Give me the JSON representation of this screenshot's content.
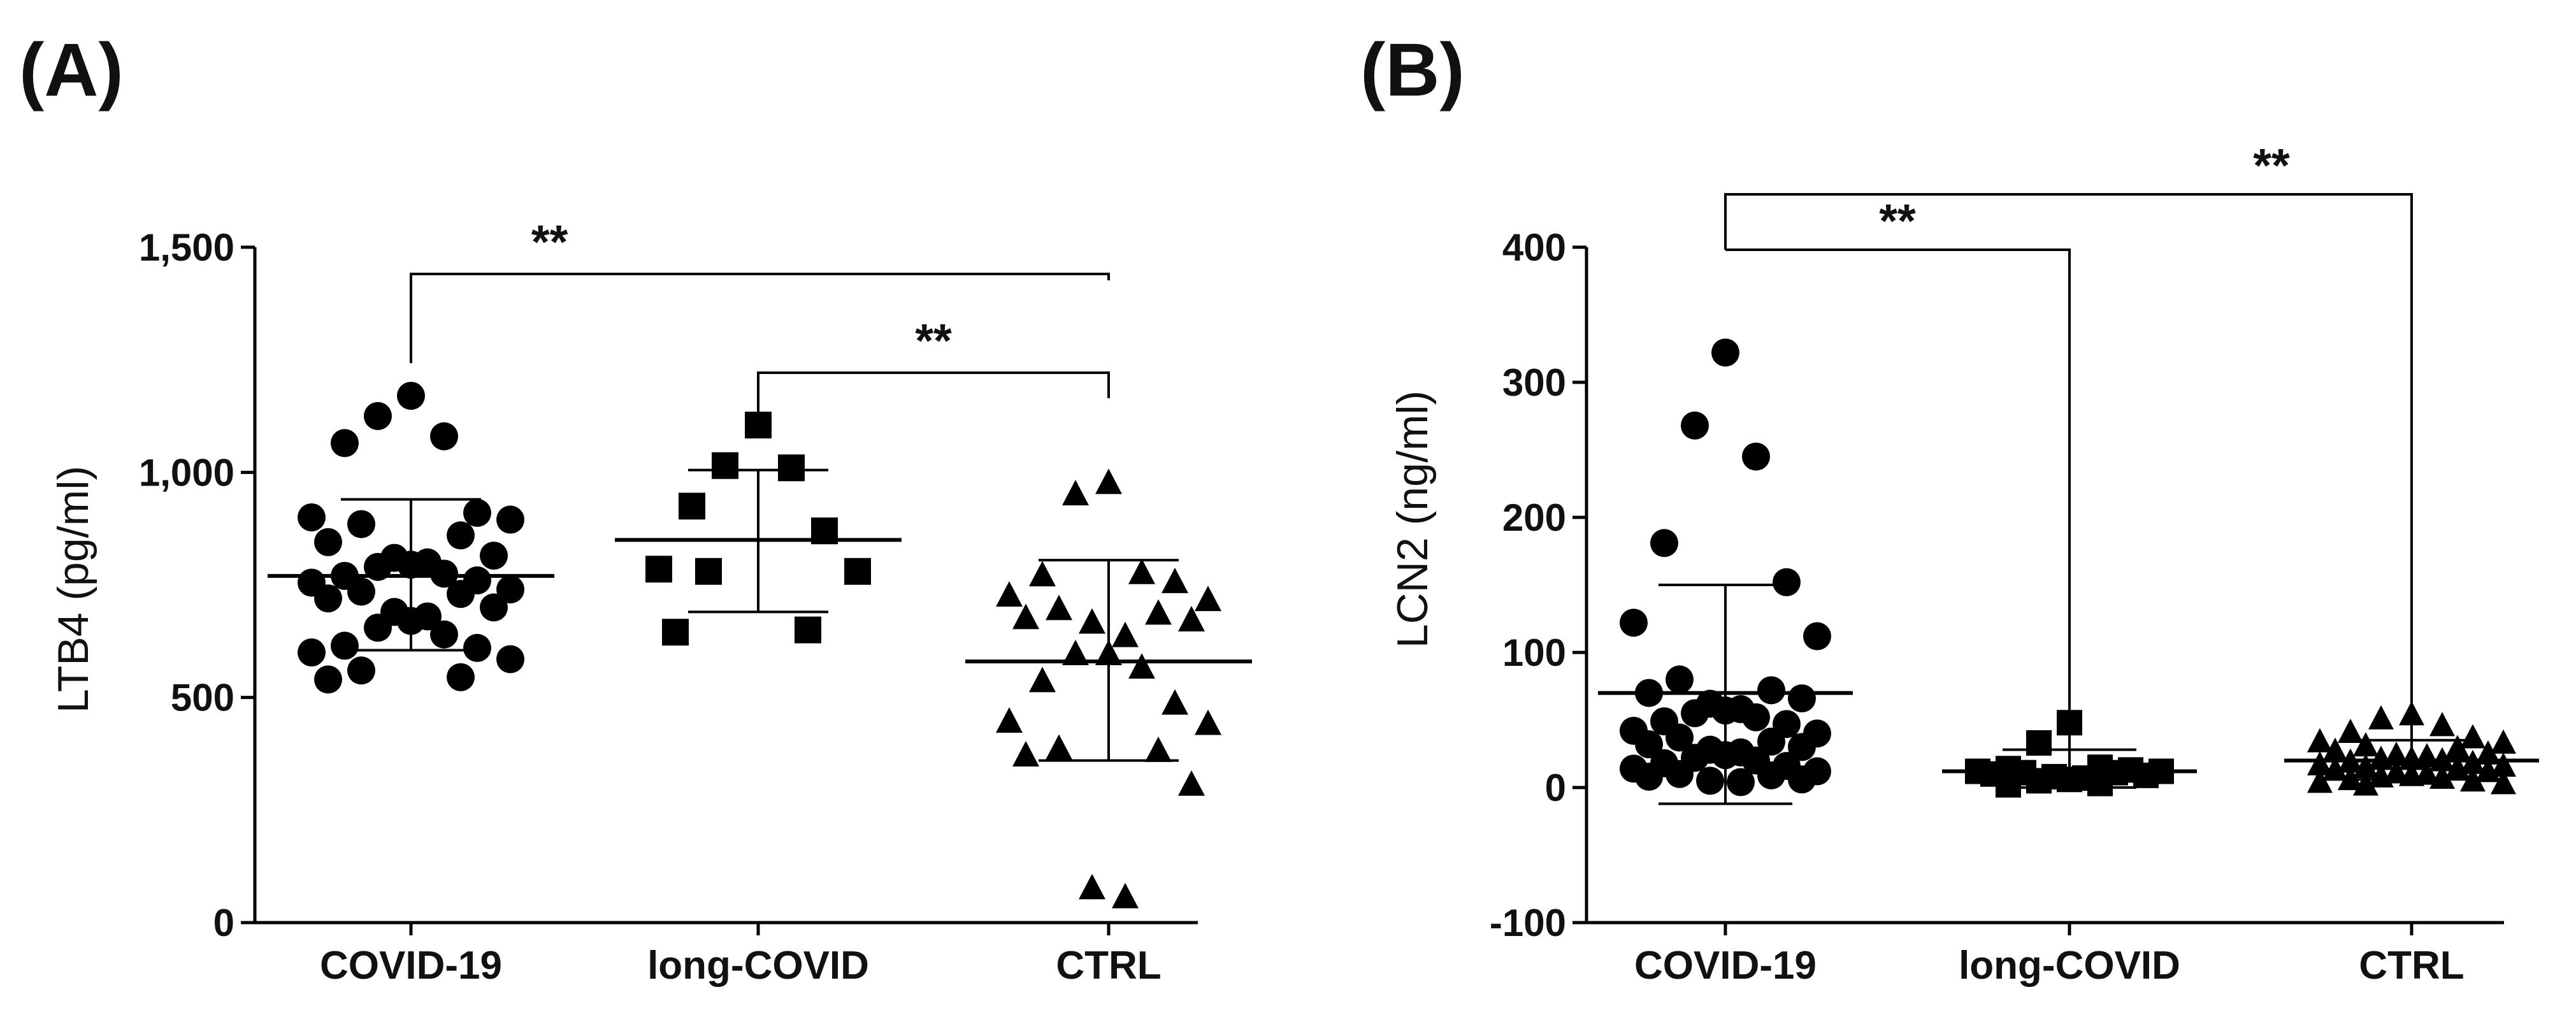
{
  "figure": {
    "panel_labels": [
      "(A)",
      "(B)"
    ]
  },
  "chart_data": [
    {
      "type": "scatter",
      "panel": "(A)",
      "ylabel": "LTB4 (pg/ml)",
      "ylim": [
        0,
        1500
      ],
      "yticks": [
        0,
        500,
        1000,
        1500
      ],
      "ytick_labels": [
        "0",
        "500",
        "1,000",
        "1,500"
      ],
      "categories": [
        "COVID-19",
        "long-COVID",
        "CTRL"
      ],
      "series": [
        {
          "name": "COVID-19",
          "marker": "circle",
          "values": [
            1170,
            1125,
            1080,
            1065,
            910,
            900,
            895,
            885,
            860,
            845,
            815,
            810,
            800,
            795,
            790,
            775,
            770,
            760,
            755,
            740,
            735,
            730,
            720,
            700,
            690,
            680,
            670,
            655,
            640,
            615,
            610,
            600,
            585,
            560,
            545,
            540
          ],
          "mean": 770,
          "sd_upper": 940,
          "sd_lower": 605
        },
        {
          "name": "long-COVID",
          "marker": "square",
          "values": [
            1105,
            1015,
            1010,
            925,
            870,
            785,
            780,
            780,
            650,
            645
          ],
          "mean": 850,
          "sd_upper": 1005,
          "sd_lower": 690
        },
        {
          "name": "CTRL",
          "marker": "triangle",
          "values": [
            980,
            955,
            780,
            775,
            760,
            730,
            720,
            700,
            690,
            680,
            675,
            670,
            640,
            600,
            600,
            570,
            540,
            490,
            450,
            445,
            390,
            385,
            375,
            310,
            80,
            60
          ],
          "mean": 580,
          "sd_upper": 805,
          "sd_lower": 360
        }
      ],
      "significance": [
        {
          "from": "COVID-19",
          "to": "CTRL",
          "label": "**"
        },
        {
          "from": "long-COVID",
          "to": "CTRL",
          "label": "**"
        }
      ]
    },
    {
      "type": "scatter",
      "panel": "(B)",
      "ylabel": "LCN2 (ng/ml)",
      "ylim": [
        -100,
        400
      ],
      "yticks": [
        -100,
        0,
        100,
        200,
        300,
        400
      ],
      "ytick_labels": [
        "-100",
        "0",
        "100",
        "200",
        "300",
        "400"
      ],
      "categories": [
        "COVID-19",
        "long-COVID",
        "CTRL"
      ],
      "series": [
        {
          "name": "COVID-19",
          "marker": "circle",
          "values": [
            322,
            268,
            245,
            181,
            152,
            122,
            112,
            80,
            72,
            70,
            66,
            62,
            58,
            57,
            55,
            52,
            49,
            47,
            42,
            40,
            37,
            34,
            32,
            30,
            28,
            26,
            24,
            22,
            20,
            18,
            16,
            14,
            12,
            10,
            9,
            8,
            6,
            5,
            4
          ],
          "mean": 70,
          "sd_upper": 150,
          "sd_lower": -12
        },
        {
          "name": "long-COVID",
          "marker": "square",
          "values": [
            48,
            33,
            15,
            14,
            13,
            12,
            12,
            11,
            11,
            10,
            9,
            8,
            7,
            6,
            5,
            3,
            2
          ],
          "mean": 12,
          "sd_upper": 28,
          "sd_lower": 0
        },
        {
          "name": "CTRL",
          "marker": "triangle",
          "values": [
            55,
            52,
            47,
            42,
            38,
            35,
            34,
            32,
            30,
            28,
            26,
            25,
            24,
            22,
            22,
            21,
            20,
            19,
            18,
            17,
            16,
            15,
            14,
            13,
            12,
            11,
            10,
            9,
            8,
            7,
            6,
            5,
            4,
            3
          ],
          "mean": 20,
          "sd_upper": 35,
          "sd_lower": 6
        }
      ],
      "significance": [
        {
          "from": "COVID-19",
          "to": "long-COVID",
          "label": "**"
        },
        {
          "from": "COVID-19",
          "to": "CTRL",
          "label": "**"
        }
      ]
    }
  ]
}
